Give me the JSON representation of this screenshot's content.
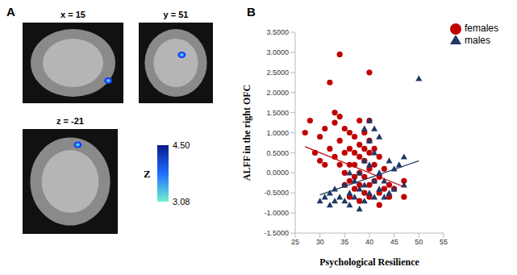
{
  "panel_a": {
    "label": "A",
    "slices": [
      "x = 15",
      "y = 51",
      "z = -21"
    ],
    "colorbar": {
      "title": "Z",
      "range": [
        3.08,
        4.5
      ],
      "ticks": [
        {
          "value": 4.5,
          "label": "4.50"
        },
        {
          "value": 3.08,
          "label": "3.08"
        }
      ]
    }
  },
  "chart_data": {
    "type": "scatter",
    "panel_label": "B",
    "x_label": "Psychological Resilience",
    "y_label": "ALFF in the right OFC",
    "xlim": [
      25,
      55
    ],
    "xticks": [
      25,
      30,
      35,
      40,
      45,
      50,
      55
    ],
    "ylim": [
      -1.5,
      3.5
    ],
    "yticks": [
      {
        "value": 3.5,
        "label": "3.5000"
      },
      {
        "value": 3.0,
        "label": "3.0000"
      },
      {
        "value": 2.5,
        "label": "2.5000"
      },
      {
        "value": 2.0,
        "label": "2.0000"
      },
      {
        "value": 1.5,
        "label": "1.5000"
      },
      {
        "value": 1.0,
        "label": "1.0000"
      },
      {
        "value": 0.5,
        "label": "0.5000"
      },
      {
        "value": 0,
        "label": "0.0000"
      },
      {
        "value": -0.5,
        "label": "-0.5000"
      },
      {
        "value": -1.0,
        "label": "-1.0000"
      },
      {
        "value": -1.5,
        "label": "-1.5000"
      }
    ],
    "grid": false,
    "legend": "upper right",
    "series": [
      {
        "name": "females",
        "color": "#c00000",
        "marker": "circle",
        "x": [
          27,
          28,
          29,
          30,
          30,
          31,
          31,
          32,
          32,
          33,
          33,
          33,
          34,
          34,
          34,
          34,
          35,
          35,
          35,
          35,
          36,
          36,
          36,
          36,
          37,
          37,
          37,
          37,
          37,
          38,
          38,
          38,
          38,
          38,
          39,
          39,
          39,
          39,
          39,
          40,
          40,
          40,
          40,
          40,
          40,
          40,
          41,
          41,
          41,
          42,
          42,
          42,
          42,
          43,
          43,
          44,
          44,
          45,
          47,
          47,
          38,
          36
        ],
        "values": [
          1.0,
          1.3,
          0.5,
          0.3,
          0.9,
          1.1,
          0.2,
          0.6,
          2.25,
          1.5,
          1.25,
          0.4,
          2.95,
          1.4,
          0.8,
          0.2,
          1.1,
          0.5,
          0.0,
          -0.3,
          1.0,
          0.6,
          0.2,
          -0.2,
          0.9,
          0.5,
          0.2,
          -0.1,
          -0.4,
          1.3,
          0.7,
          0.4,
          0.0,
          -0.3,
          1.0,
          0.6,
          0.3,
          -0.1,
          -0.5,
          2.5,
          1.3,
          0.8,
          0.5,
          0.1,
          -0.3,
          -0.6,
          0.6,
          0.2,
          -0.2,
          0.4,
          -0.1,
          -0.5,
          -0.8,
          0.1,
          -0.4,
          -0.3,
          -0.6,
          -0.4,
          -0.2,
          -0.6,
          -0.7,
          -0.6
        ],
        "trend": {
          "x": [
            27,
            47
          ],
          "values": [
            0.65,
            -0.35
          ]
        }
      },
      {
        "name": "males",
        "color": "#1f3864",
        "marker": "triangle",
        "x": [
          30,
          31,
          32,
          32,
          33,
          33,
          34,
          35,
          35,
          36,
          36,
          37,
          37,
          38,
          38,
          38,
          39,
          39,
          39,
          39,
          40,
          40,
          40,
          40,
          41,
          41,
          41,
          42,
          42,
          42,
          43,
          43,
          44,
          44,
          45,
          45,
          46,
          47,
          47,
          50,
          41,
          36
        ],
        "values": [
          -0.7,
          -0.6,
          -0.5,
          -0.8,
          -0.4,
          -0.7,
          -0.6,
          -0.3,
          -0.7,
          -0.5,
          -0.8,
          -0.2,
          -0.6,
          0.0,
          -0.4,
          -0.9,
          1.1,
          0.3,
          -0.3,
          -0.7,
          1.3,
          0.8,
          0.2,
          -0.5,
          0.5,
          -0.2,
          -0.6,
          0.9,
          0.0,
          -0.4,
          -0.2,
          -0.6,
          0.3,
          -0.5,
          0.1,
          -0.4,
          0.2,
          0.4,
          -0.3,
          2.35,
          1.1,
          0.0
        ],
        "trend": {
          "x": [
            30,
            50
          ],
          "values": [
            -0.55,
            0.3
          ]
        }
      }
    ]
  }
}
